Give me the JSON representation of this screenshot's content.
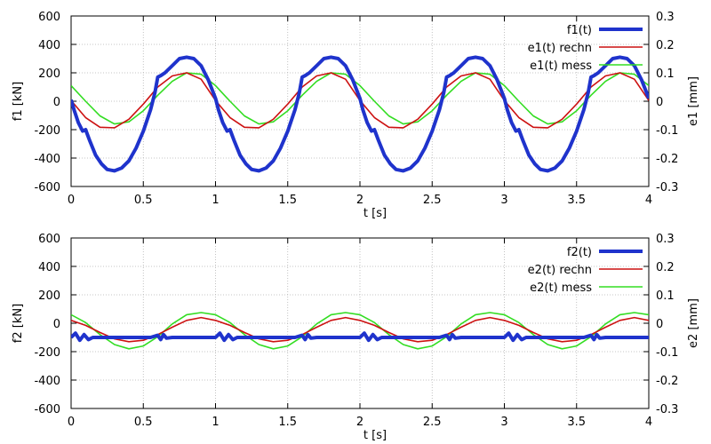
{
  "chart_data": [
    {
      "type": "line",
      "xlabel": "t [s]",
      "ylabel_left": "f1 [kN]",
      "ylabel_right": "e1 [mm]",
      "xlim": [
        0,
        4
      ],
      "ylim_left": [
        -600,
        600
      ],
      "ylim_right": [
        -0.3,
        0.3
      ],
      "xticks": [
        "0",
        "0.5",
        "1",
        "1.5",
        "2",
        "2.5",
        "3",
        "3.5",
        "4"
      ],
      "yticks_left": [
        "-600",
        "-400",
        "-200",
        "0",
        "200",
        "400",
        "600"
      ],
      "yticks_right": [
        "-0.3",
        "-0.2",
        "-0.1",
        "0",
        "0.1",
        "0.2",
        "0.3"
      ],
      "grid": true,
      "legend_position": "top-right",
      "series": [
        {
          "name": "f1(t)",
          "axis": "left",
          "color": "#1f33cc",
          "x": [
            0,
            0.02,
            0.05,
            0.08,
            0.1,
            0.13,
            0.17,
            0.21,
            0.25,
            0.3,
            0.35,
            0.4,
            0.45,
            0.5,
            0.55,
            0.58,
            0.6,
            0.62,
            0.65,
            0.7,
            0.75,
            0.8,
            0.85,
            0.9,
            0.95,
            1.0,
            1.02,
            1.05,
            1.08,
            1.1,
            1.13,
            1.17,
            1.21,
            1.25,
            1.3,
            1.35,
            1.4,
            1.45,
            1.5,
            1.55,
            1.58,
            1.6,
            1.62,
            1.65,
            1.7,
            1.75,
            1.8,
            1.85,
            1.9,
            1.95,
            2.0,
            2.02,
            2.05,
            2.08,
            2.1,
            2.13,
            2.17,
            2.21,
            2.25,
            2.3,
            2.35,
            2.4,
            2.45,
            2.5,
            2.55,
            2.58,
            2.6,
            2.62,
            2.65,
            2.7,
            2.75,
            2.8,
            2.85,
            2.9,
            2.95,
            3.0,
            3.02,
            3.05,
            3.08,
            3.1,
            3.13,
            3.17,
            3.21,
            3.25,
            3.3,
            3.35,
            3.4,
            3.45,
            3.5,
            3.55,
            3.58,
            3.6,
            3.62,
            3.65,
            3.7,
            3.75,
            3.8,
            3.85,
            3.9,
            3.95,
            4.0
          ],
          "y": [
            10,
            -60,
            -150,
            -210,
            -200,
            -280,
            -380,
            -440,
            -480,
            -490,
            -470,
            -420,
            -330,
            -210,
            -60,
            60,
            170,
            180,
            200,
            250,
            300,
            310,
            300,
            250,
            150,
            20,
            -60,
            -150,
            -210,
            -200,
            -280,
            -380,
            -440,
            -480,
            -490,
            -470,
            -420,
            -330,
            -210,
            -60,
            60,
            170,
            180,
            200,
            250,
            300,
            310,
            300,
            250,
            150,
            20,
            -60,
            -150,
            -210,
            -200,
            -280,
            -380,
            -440,
            -480,
            -490,
            -470,
            -420,
            -330,
            -210,
            -60,
            60,
            170,
            180,
            200,
            250,
            300,
            310,
            300,
            250,
            150,
            20,
            -60,
            -150,
            -210,
            -200,
            -280,
            -380,
            -440,
            -480,
            -490,
            -470,
            -420,
            -330,
            -210,
            -60,
            60,
            170,
            180,
            200,
            250,
            300,
            310,
            300,
            250,
            150,
            20
          ]
        },
        {
          "name": "e1(t) rechn",
          "axis": "left",
          "color": "#cc1111",
          "x": [
            0,
            0.1,
            0.2,
            0.3,
            0.4,
            0.5,
            0.6,
            0.7,
            0.8,
            0.9,
            1.0,
            1.1,
            1.2,
            1.3,
            1.4,
            1.5,
            1.6,
            1.7,
            1.8,
            1.9,
            2.0,
            2.1,
            2.2,
            2.3,
            2.4,
            2.5,
            2.6,
            2.7,
            2.8,
            2.9,
            3.0,
            3.1,
            3.2,
            3.3,
            3.4,
            3.5,
            3.6,
            3.7,
            3.8,
            3.9,
            4.0
          ],
          "y": [
            5,
            -115,
            -183,
            -187,
            -127,
            -20,
            100,
            178,
            200,
            155,
            5,
            -115,
            -183,
            -187,
            -127,
            -20,
            100,
            178,
            200,
            155,
            5,
            -115,
            -183,
            -187,
            -127,
            -20,
            100,
            178,
            200,
            155,
            5,
            -115,
            -183,
            -187,
            -127,
            -20,
            100,
            178,
            200,
            155,
            5
          ]
        },
        {
          "name": "e1(t) mess",
          "axis": "left",
          "color": "#33dd22",
          "x": [
            0,
            0.1,
            0.2,
            0.3,
            0.4,
            0.5,
            0.6,
            0.7,
            0.8,
            0.9,
            1.0,
            1.1,
            1.2,
            1.3,
            1.4,
            1.5,
            1.6,
            1.7,
            1.8,
            1.9,
            2.0,
            2.1,
            2.2,
            2.3,
            2.4,
            2.5,
            2.6,
            2.7,
            2.8,
            2.9,
            3.0,
            3.1,
            3.2,
            3.3,
            3.4,
            3.5,
            3.6,
            3.7,
            3.8,
            3.9,
            4.0
          ],
          "y": [
            110,
            0,
            -103,
            -160,
            -145,
            -67,
            42,
            140,
            200,
            190,
            110,
            0,
            -103,
            -160,
            -145,
            -67,
            42,
            140,
            200,
            190,
            110,
            0,
            -103,
            -160,
            -145,
            -67,
            42,
            140,
            200,
            190,
            110,
            0,
            -103,
            -160,
            -145,
            -67,
            42,
            140,
            200,
            190,
            110
          ]
        }
      ]
    },
    {
      "type": "line",
      "xlabel": "t [s]",
      "ylabel_left": "f2 [kN]",
      "ylabel_right": "e2 [mm]",
      "xlim": [
        0,
        4
      ],
      "ylim_left": [
        -600,
        600
      ],
      "ylim_right": [
        -0.3,
        0.3
      ],
      "xticks": [
        "0",
        "0.5",
        "1",
        "1.5",
        "2",
        "2.5",
        "3",
        "3.5",
        "4"
      ],
      "yticks_left": [
        "-600",
        "-400",
        "-200",
        "0",
        "200",
        "400",
        "600"
      ],
      "yticks_right": [
        "-0.3",
        "-0.2",
        "-0.1",
        "0",
        "0.1",
        "0.2",
        "0.3"
      ],
      "grid": true,
      "legend_position": "top-right",
      "series": [
        {
          "name": "f2(t)",
          "axis": "left",
          "color": "#1f33cc",
          "x": [
            0,
            0.03,
            0.06,
            0.09,
            0.12,
            0.15,
            0.2,
            0.3,
            0.4,
            0.5,
            0.55,
            0.6,
            0.62,
            0.64,
            0.66,
            0.7,
            0.8,
            0.9,
            1.0,
            1.03,
            1.06,
            1.09,
            1.12,
            1.15,
            1.2,
            1.3,
            1.4,
            1.5,
            1.55,
            1.6,
            1.62,
            1.64,
            1.66,
            1.7,
            1.8,
            1.9,
            2.0,
            2.03,
            2.06,
            2.09,
            2.12,
            2.15,
            2.2,
            2.3,
            2.4,
            2.5,
            2.55,
            2.6,
            2.62,
            2.64,
            2.66,
            2.7,
            2.8,
            2.9,
            3.0,
            3.03,
            3.06,
            3.09,
            3.12,
            3.15,
            3.2,
            3.3,
            3.4,
            3.5,
            3.55,
            3.6,
            3.62,
            3.64,
            3.66,
            3.7,
            3.8,
            3.9,
            4.0
          ],
          "y": [
            -100,
            -70,
            -120,
            -80,
            -115,
            -100,
            -100,
            -100,
            -100,
            -100,
            -100,
            -85,
            -115,
            -80,
            -105,
            -100,
            -100,
            -100,
            -100,
            -70,
            -120,
            -80,
            -115,
            -100,
            -100,
            -100,
            -100,
            -100,
            -100,
            -85,
            -115,
            -80,
            -105,
            -100,
            -100,
            -100,
            -100,
            -70,
            -120,
            -80,
            -115,
            -100,
            -100,
            -100,
            -100,
            -100,
            -100,
            -85,
            -115,
            -80,
            -105,
            -100,
            -100,
            -100,
            -100,
            -70,
            -120,
            -80,
            -115,
            -100,
            -100,
            -100,
            -100,
            -100,
            -100,
            -85,
            -115,
            -80,
            -105,
            -100,
            -100,
            -100,
            -100
          ]
        },
        {
          "name": "e2(t) rechn",
          "axis": "left",
          "color": "#cc1111",
          "x": [
            0,
            0.1,
            0.2,
            0.3,
            0.4,
            0.5,
            0.6,
            0.7,
            0.8,
            0.9,
            1.0,
            1.1,
            1.2,
            1.3,
            1.4,
            1.5,
            1.6,
            1.7,
            1.8,
            1.9,
            2.0,
            2.1,
            2.2,
            2.3,
            2.4,
            2.5,
            2.6,
            2.7,
            2.8,
            2.9,
            3.0,
            3.1,
            3.2,
            3.3,
            3.4,
            3.5,
            3.6,
            3.7,
            3.8,
            3.9,
            4.0
          ],
          "y": [
            20,
            -15,
            -65,
            -110,
            -130,
            -120,
            -80,
            -28,
            20,
            40,
            20,
            -15,
            -65,
            -110,
            -130,
            -120,
            -80,
            -28,
            20,
            40,
            20,
            -15,
            -65,
            -110,
            -130,
            -120,
            -80,
            -28,
            20,
            40,
            20,
            -15,
            -65,
            -110,
            -130,
            -120,
            -80,
            -28,
            20,
            40,
            20
          ]
        },
        {
          "name": "e2(t) mess",
          "axis": "left",
          "color": "#33dd22",
          "x": [
            0,
            0.1,
            0.2,
            0.3,
            0.4,
            0.5,
            0.6,
            0.7,
            0.8,
            0.9,
            1.0,
            1.1,
            1.2,
            1.3,
            1.4,
            1.5,
            1.6,
            1.7,
            1.8,
            1.9,
            2.0,
            2.1,
            2.2,
            2.3,
            2.4,
            2.5,
            2.6,
            2.7,
            2.8,
            2.9,
            3.0,
            3.1,
            3.2,
            3.3,
            3.4,
            3.5,
            3.6,
            3.7,
            3.8,
            3.9,
            4.0
          ],
          "y": [
            60,
            5,
            -80,
            -150,
            -180,
            -160,
            -95,
            -5,
            60,
            75,
            60,
            5,
            -80,
            -150,
            -180,
            -160,
            -95,
            -5,
            60,
            75,
            60,
            5,
            -80,
            -150,
            -180,
            -160,
            -95,
            -5,
            60,
            75,
            60,
            5,
            -80,
            -150,
            -180,
            -160,
            -95,
            -5,
            60,
            75,
            60
          ]
        }
      ]
    }
  ]
}
